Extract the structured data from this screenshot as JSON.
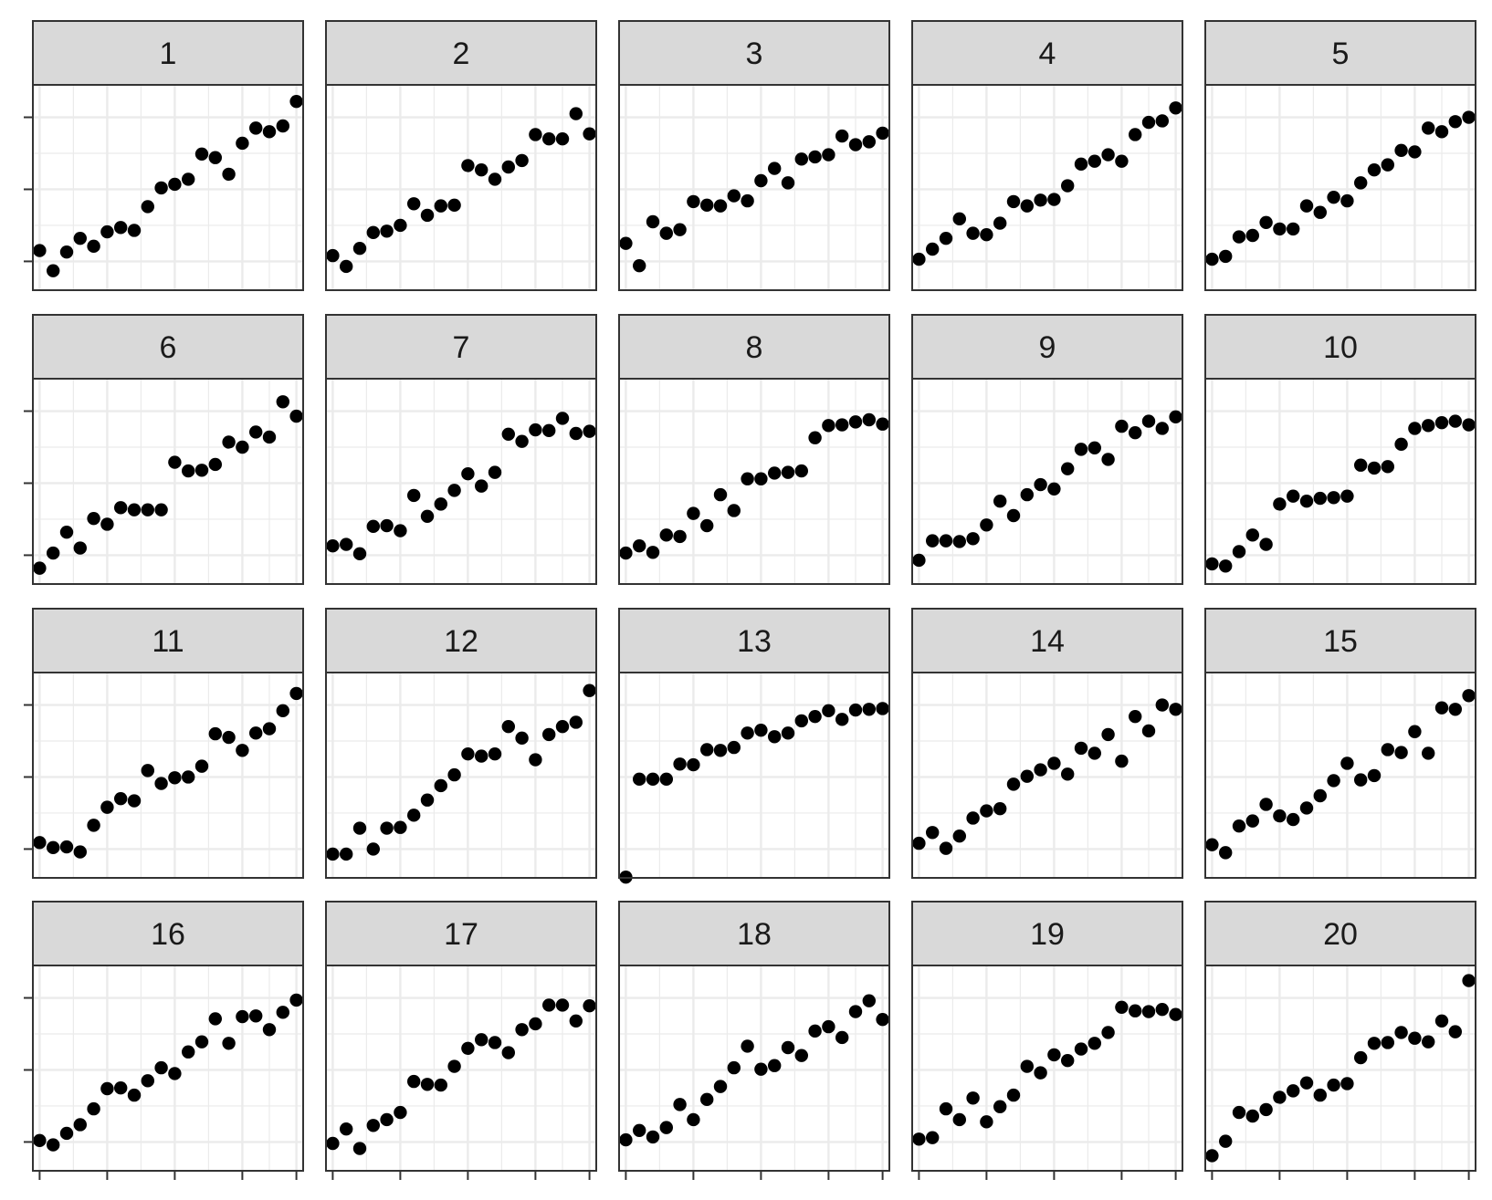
{
  "chart_data": {
    "type": "scatter",
    "facet_layout": {
      "rows": 4,
      "cols": 5
    },
    "x": [
      1,
      2,
      3,
      4,
      5,
      6,
      7,
      8,
      9,
      10,
      11,
      12,
      13,
      14,
      15,
      16,
      17,
      18,
      19,
      20
    ],
    "xlim": [
      0.5,
      20.5
    ],
    "ylim": [
      -0.4,
      2.45
    ],
    "x_ticks": [
      1,
      6,
      11,
      16,
      20
    ],
    "y_ticks": [
      0,
      1,
      2
    ],
    "tick_labels_shown": false,
    "grid": true,
    "point_color": "#000000",
    "strip_fill": "#d9d9d9",
    "grid_color": "#ebebeb",
    "panels": [
      {
        "label": "1",
        "values": [
          0.15,
          -0.13,
          0.13,
          0.32,
          0.21,
          0.41,
          0.47,
          0.43,
          0.76,
          1.02,
          1.07,
          1.14,
          1.49,
          1.44,
          1.21,
          1.64,
          1.85,
          1.8,
          1.88,
          2.22
        ]
      },
      {
        "label": "2",
        "values": [
          0.08,
          -0.07,
          0.18,
          0.4,
          0.42,
          0.5,
          0.8,
          0.64,
          0.77,
          0.78,
          1.33,
          1.27,
          1.14,
          1.31,
          1.4,
          1.76,
          1.7,
          1.7,
          2.05,
          1.77
        ]
      },
      {
        "label": "3",
        "values": [
          0.25,
          -0.06,
          0.55,
          0.39,
          0.44,
          0.83,
          0.78,
          0.77,
          0.91,
          0.84,
          1.12,
          1.29,
          1.09,
          1.42,
          1.45,
          1.48,
          1.74,
          1.62,
          1.66,
          1.78
        ]
      },
      {
        "label": "4",
        "values": [
          0.03,
          0.17,
          0.32,
          0.59,
          0.39,
          0.37,
          0.53,
          0.83,
          0.77,
          0.85,
          0.86,
          1.05,
          1.35,
          1.39,
          1.48,
          1.39,
          1.76,
          1.93,
          1.95,
          2.13
        ]
      },
      {
        "label": "5",
        "values": [
          0.03,
          0.07,
          0.34,
          0.36,
          0.54,
          0.45,
          0.45,
          0.77,
          0.68,
          0.89,
          0.84,
          1.09,
          1.27,
          1.34,
          1.54,
          1.52,
          1.85,
          1.8,
          1.94,
          2.0
        ]
      },
      {
        "label": "6",
        "values": [
          -0.18,
          0.03,
          0.32,
          0.1,
          0.51,
          0.43,
          0.66,
          0.63,
          0.63,
          0.63,
          1.29,
          1.17,
          1.18,
          1.26,
          1.57,
          1.5,
          1.71,
          1.64,
          2.13,
          1.93
        ]
      },
      {
        "label": "7",
        "values": [
          0.13,
          0.15,
          0.02,
          0.4,
          0.41,
          0.34,
          0.83,
          0.54,
          0.71,
          0.9,
          1.13,
          0.96,
          1.15,
          1.68,
          1.58,
          1.74,
          1.73,
          1.9,
          1.69,
          1.72
        ]
      },
      {
        "label": "8",
        "values": [
          0.03,
          0.13,
          0.04,
          0.28,
          0.26,
          0.58,
          0.41,
          0.84,
          0.62,
          1.06,
          1.06,
          1.14,
          1.15,
          1.17,
          1.63,
          1.8,
          1.81,
          1.85,
          1.88,
          1.82
        ]
      },
      {
        "label": "9",
        "values": [
          -0.07,
          0.2,
          0.2,
          0.19,
          0.23,
          0.42,
          0.75,
          0.55,
          0.84,
          0.98,
          0.92,
          1.2,
          1.47,
          1.49,
          1.33,
          1.79,
          1.7,
          1.86,
          1.76,
          1.92
        ]
      },
      {
        "label": "10",
        "values": [
          -0.12,
          -0.15,
          0.05,
          0.28,
          0.15,
          0.71,
          0.82,
          0.75,
          0.79,
          0.8,
          0.82,
          1.25,
          1.21,
          1.23,
          1.54,
          1.76,
          1.8,
          1.84,
          1.86,
          1.81
        ]
      },
      {
        "label": "11",
        "values": [
          0.09,
          0.02,
          0.03,
          -0.04,
          0.33,
          0.58,
          0.7,
          0.67,
          1.09,
          0.91,
          0.99,
          1.0,
          1.15,
          1.6,
          1.55,
          1.37,
          1.61,
          1.67,
          1.92,
          2.16
        ]
      },
      {
        "label": "12",
        "values": [
          -0.07,
          -0.07,
          0.29,
          0.0,
          0.29,
          0.3,
          0.47,
          0.68,
          0.88,
          1.03,
          1.32,
          1.29,
          1.32,
          1.7,
          1.54,
          1.24,
          1.59,
          1.7,
          1.76,
          2.2
        ]
      },
      {
        "label": "13",
        "values": [
          -0.39,
          0.97,
          0.97,
          0.97,
          1.18,
          1.17,
          1.38,
          1.37,
          1.41,
          1.61,
          1.65,
          1.56,
          1.61,
          1.78,
          1.84,
          1.92,
          1.8,
          1.93,
          1.94,
          1.95
        ]
      },
      {
        "label": "14",
        "values": [
          0.08,
          0.23,
          0.01,
          0.18,
          0.43,
          0.53,
          0.56,
          0.9,
          1.01,
          1.1,
          1.19,
          1.04,
          1.4,
          1.33,
          1.59,
          1.22,
          1.84,
          1.64,
          2.0,
          1.94
        ]
      },
      {
        "label": "15",
        "values": [
          0.06,
          -0.05,
          0.32,
          0.39,
          0.62,
          0.46,
          0.41,
          0.57,
          0.74,
          0.95,
          1.19,
          0.96,
          1.02,
          1.38,
          1.34,
          1.63,
          1.33,
          1.96,
          1.94,
          2.13
        ]
      },
      {
        "label": "16",
        "values": [
          0.02,
          -0.04,
          0.12,
          0.24,
          0.46,
          0.74,
          0.75,
          0.65,
          0.85,
          1.03,
          0.95,
          1.25,
          1.39,
          1.71,
          1.37,
          1.74,
          1.75,
          1.56,
          1.8,
          1.97
        ]
      },
      {
        "label": "17",
        "values": [
          -0.02,
          0.18,
          -0.09,
          0.23,
          0.31,
          0.41,
          0.84,
          0.8,
          0.79,
          1.05,
          1.3,
          1.42,
          1.38,
          1.24,
          1.56,
          1.64,
          1.9,
          1.9,
          1.68,
          1.89
        ]
      },
      {
        "label": "18",
        "values": [
          0.03,
          0.16,
          0.07,
          0.2,
          0.52,
          0.31,
          0.59,
          0.77,
          1.03,
          1.33,
          1.01,
          1.06,
          1.31,
          1.2,
          1.54,
          1.6,
          1.45,
          1.81,
          1.96,
          1.7
        ]
      },
      {
        "label": "19",
        "values": [
          0.04,
          0.06,
          0.46,
          0.31,
          0.61,
          0.28,
          0.49,
          0.65,
          1.05,
          0.96,
          1.21,
          1.13,
          1.29,
          1.37,
          1.52,
          1.87,
          1.82,
          1.81,
          1.84,
          1.77
        ]
      },
      {
        "label": "20",
        "values": [
          -0.19,
          0.01,
          0.41,
          0.36,
          0.45,
          0.62,
          0.71,
          0.82,
          0.65,
          0.79,
          0.81,
          1.17,
          1.37,
          1.38,
          1.52,
          1.44,
          1.39,
          1.68,
          1.53,
          2.24
        ]
      }
    ]
  }
}
